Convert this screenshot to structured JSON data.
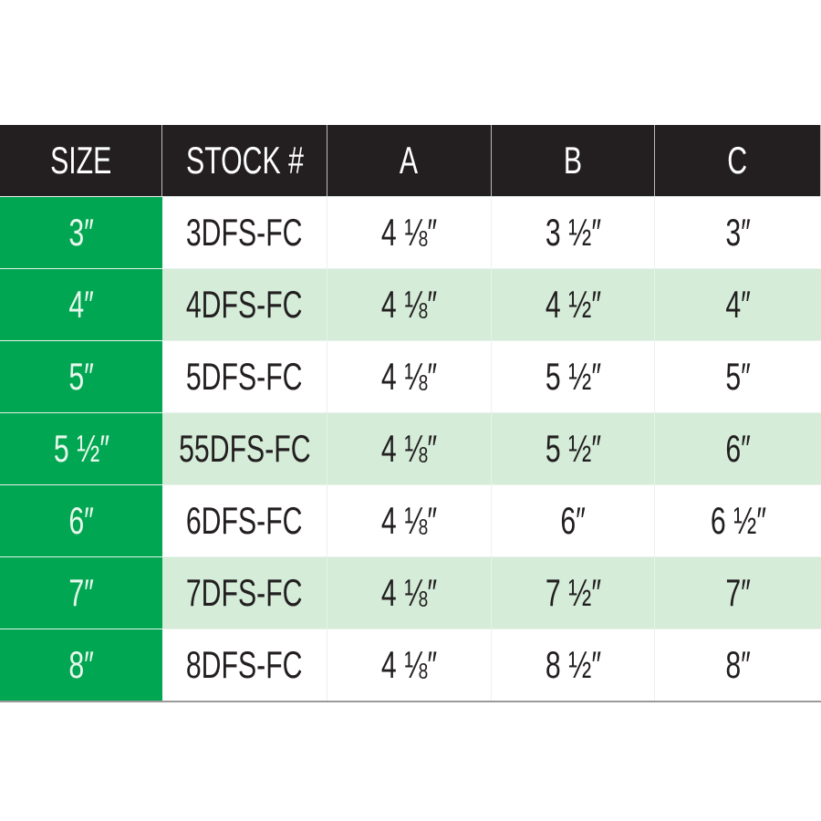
{
  "table": {
    "headers": [
      "SIZE",
      "STOCK #",
      "A",
      "B",
      "C"
    ],
    "rows": [
      [
        "3″",
        "3DFS-FC",
        "4 ⅛″",
        "3 ½″",
        "3″"
      ],
      [
        "4″",
        "4DFS-FC",
        "4 ⅛″",
        "4 ½″",
        "4″"
      ],
      [
        "5″",
        "5DFS-FC",
        "4 ⅛″",
        "5 ½″",
        "5″"
      ],
      [
        "5 ½″",
        "55DFS-FC",
        "4 ⅛″",
        "5 ½″",
        "6″"
      ],
      [
        "6″",
        "6DFS-FC",
        "4 ⅛″",
        "6″",
        "6 ½″"
      ],
      [
        "7″",
        "7DFS-FC",
        "4 ⅛″",
        "7 ½″",
        "7″"
      ],
      [
        "8″",
        "8DFS-FC",
        "4 ⅛″",
        "8 ½″",
        "8″"
      ]
    ]
  },
  "colors": {
    "header_bg": "#231f20",
    "size_column_bg": "#00a651",
    "alt_row_bg": "#d4ecd8"
  }
}
